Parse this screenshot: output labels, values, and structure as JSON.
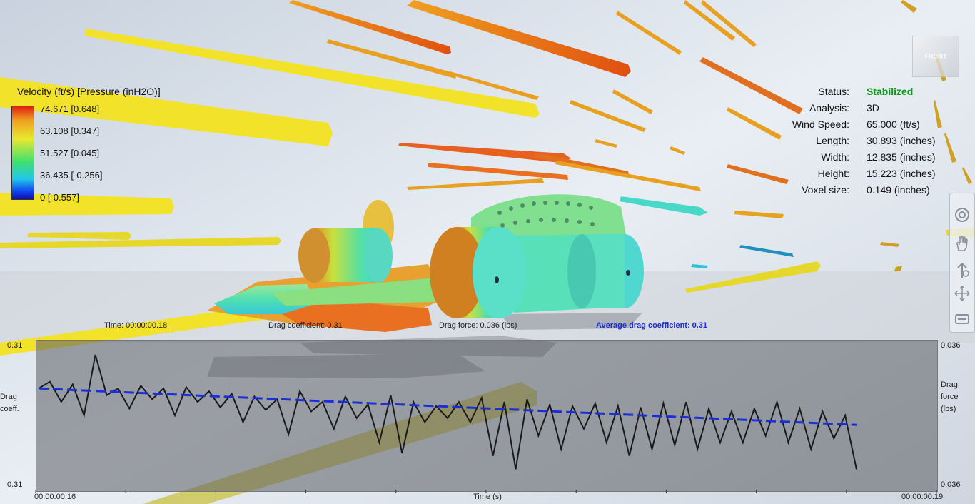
{
  "legend": {
    "title": "Velocity (ft/s) [Pressure (inH2O)]",
    "labels": [
      "74.671 [0.648]",
      "63.108 [0.347]",
      "51.527 [0.045]",
      "36.435 [-0.256]",
      "0 [-0.557]"
    ]
  },
  "stats": {
    "status_label": "Status:",
    "status_value": "Stabilized",
    "analysis_label": "Analysis:",
    "analysis_value": "3D",
    "wind_label": "Wind Speed:",
    "wind_value": "65.000 (ft/s)",
    "length_label": "Length:",
    "length_value": "30.893 (inches)",
    "width_label": "Width:",
    "width_value": "12.835 (inches)",
    "height_label": "Height:",
    "height_value": "15.223 (inches)",
    "voxel_label": "Voxel size:",
    "voxel_value": "0.149 (inches)"
  },
  "sim": {
    "time": "Time: 00:00:00.18",
    "drag_coeff": "Drag coefficient: 0.31",
    "drag_force": "Drag force: 0.036 (lbs)",
    "avg_drag": "Average drag coefficient: 0.31"
  },
  "graph": {
    "left_top": "0.31",
    "left_bottom": "0.31",
    "left_label_1": "Drag",
    "left_label_2": "coeff.",
    "right_top": "0.036",
    "right_bottom": "0.036",
    "right_label_1": "Drag",
    "right_label_2": "force",
    "right_label_3": "(lbs)",
    "x_start": "00:00:00.16",
    "x_label": "Time (s)",
    "x_end": "00:00:00.19"
  },
  "viewcube": {
    "face_label": "FRONT"
  },
  "tools": [
    "orbit-icon",
    "pan-hand-icon",
    "zoom-icon",
    "fit-view-icon",
    "view-settings-icon"
  ],
  "chart_data": {
    "type": "line",
    "series": [
      {
        "values": [
          0.31,
          0.3105,
          0.309,
          0.3103,
          0.308,
          0.3125,
          0.3095,
          0.31,
          0.3085,
          0.3102,
          0.3092,
          0.31,
          0.308,
          0.3101,
          0.309,
          0.3098,
          0.3086,
          0.3096,
          0.3075,
          0.3094,
          0.3084,
          0.3092,
          0.3066,
          0.3098,
          0.3083,
          0.309,
          0.307,
          0.3094,
          0.3078,
          0.3088,
          0.306,
          0.3095,
          0.3052,
          0.309,
          0.3075,
          0.3087,
          0.3078,
          0.309,
          0.3075,
          0.3093,
          0.305,
          0.309,
          0.304,
          0.3092,
          0.3065,
          0.3088,
          0.3055,
          0.3087,
          0.307,
          0.3089,
          0.306,
          0.3087,
          0.305,
          0.3086,
          0.3055,
          0.3089,
          0.3058,
          0.309,
          0.3055,
          0.3085,
          0.306,
          0.3083,
          0.306,
          0.3085,
          0.3065,
          0.309,
          0.306,
          0.3085,
          0.3055,
          0.3083,
          0.3063,
          0.308,
          0.304
        ]
      },
      {
        "values": [
          0.31,
          0.3073
        ]
      }
    ]
  }
}
